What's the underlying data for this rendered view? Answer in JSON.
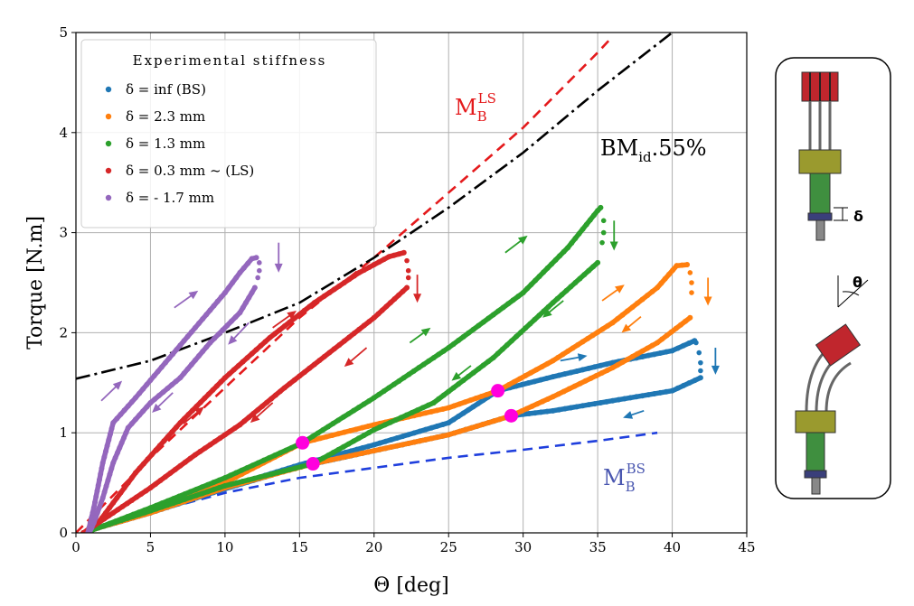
{
  "chart_data": {
    "type": "scatter",
    "title": "",
    "xlabel": "Θ [deg]",
    "ylabel": "Torque [N.m]",
    "xlim": [
      0,
      45
    ],
    "ylim": [
      0,
      5
    ],
    "xticks": [
      "0",
      "5",
      "10",
      "15",
      "20",
      "25",
      "30",
      "35",
      "40",
      "45"
    ],
    "yticks": [
      "0",
      "1",
      "2",
      "3",
      "4",
      "5"
    ],
    "grid": true,
    "legend": {
      "title": "Experimental stiffness",
      "position": "top-left",
      "entries": [
        {
          "label": "δ = inf (BS)",
          "color": "#1f77b4"
        },
        {
          "label": "δ = 2.3 mm",
          "color": "#ff7f0e"
        },
        {
          "label": "δ = 1.3 mm",
          "color": "#2ca02c"
        },
        {
          "label": "δ = 0.3 mm ~ (LS)",
          "color": "#d62728"
        },
        {
          "label": "δ = - 1.7 mm",
          "color": "#9467bd"
        }
      ]
    },
    "series": [
      {
        "name": "δ = inf (BS)",
        "color": "#1f77b4",
        "loading": [
          [
            0.5,
            0.0
          ],
          [
            1.5,
            0.05
          ],
          [
            5,
            0.2
          ],
          [
            10,
            0.45
          ],
          [
            15,
            0.68
          ],
          [
            20,
            0.88
          ],
          [
            25,
            1.1
          ],
          [
            28.3,
            1.42
          ],
          [
            32,
            1.56
          ],
          [
            36,
            1.7
          ],
          [
            40,
            1.82
          ],
          [
            41.5,
            1.92
          ]
        ],
        "drop": [
          [
            41.6,
            1.9
          ],
          [
            41.8,
            1.8
          ],
          [
            41.9,
            1.7
          ],
          [
            41.9,
            1.62
          ]
        ],
        "unloading": [
          [
            41.9,
            1.55
          ],
          [
            40,
            1.42
          ],
          [
            36,
            1.32
          ],
          [
            32,
            1.22
          ],
          [
            29.2,
            1.17
          ],
          [
            25,
            0.98
          ],
          [
            20,
            0.82
          ],
          [
            15,
            0.66
          ],
          [
            10,
            0.44
          ],
          [
            5,
            0.2
          ],
          [
            1.5,
            0.05
          ],
          [
            0.5,
            0.0
          ]
        ]
      },
      {
        "name": "δ = 2.3 mm",
        "color": "#ff7f0e",
        "loading": [
          [
            0.5,
            0.0
          ],
          [
            1.5,
            0.05
          ],
          [
            5,
            0.22
          ],
          [
            10,
            0.5
          ],
          [
            15.2,
            0.9
          ],
          [
            20,
            1.08
          ],
          [
            25,
            1.25
          ],
          [
            28.3,
            1.42
          ],
          [
            32,
            1.72
          ],
          [
            36,
            2.1
          ],
          [
            39,
            2.45
          ],
          [
            40.3,
            2.67
          ],
          [
            41,
            2.68
          ]
        ],
        "drop": [
          [
            41.2,
            2.6
          ],
          [
            41.3,
            2.5
          ],
          [
            41.3,
            2.4
          ]
        ],
        "unloading": [
          [
            41.2,
            2.15
          ],
          [
            39,
            1.9
          ],
          [
            36,
            1.65
          ],
          [
            32,
            1.36
          ],
          [
            29.2,
            1.17
          ],
          [
            25,
            0.98
          ],
          [
            20,
            0.82
          ],
          [
            15.9,
            0.69
          ],
          [
            10,
            0.45
          ],
          [
            5,
            0.2
          ],
          [
            1.5,
            0.05
          ],
          [
            0.5,
            0.0
          ]
        ]
      },
      {
        "name": "δ = 1.3 mm",
        "color": "#2ca02c",
        "loading": [
          [
            0.5,
            0.0
          ],
          [
            1.5,
            0.05
          ],
          [
            5,
            0.25
          ],
          [
            10,
            0.55
          ],
          [
            15.2,
            0.9
          ],
          [
            20,
            1.35
          ],
          [
            25,
            1.85
          ],
          [
            30,
            2.4
          ],
          [
            33,
            2.85
          ],
          [
            35,
            3.22
          ],
          [
            35.2,
            3.25
          ]
        ],
        "drop": [
          [
            35.4,
            3.12
          ],
          [
            35.4,
            3.0
          ],
          [
            35.3,
            2.9
          ]
        ],
        "unloading": [
          [
            35.0,
            2.7
          ],
          [
            32,
            2.3
          ],
          [
            28,
            1.75
          ],
          [
            24,
            1.3
          ],
          [
            20,
            1.03
          ],
          [
            15.9,
            0.69
          ],
          [
            10,
            0.47
          ],
          [
            5,
            0.22
          ],
          [
            1.5,
            0.05
          ],
          [
            0.5,
            0.0
          ]
        ]
      },
      {
        "name": "δ = 0.3 mm ~ (LS)",
        "color": "#d62728",
        "loading": [
          [
            0.5,
            0.0
          ],
          [
            1.5,
            0.1
          ],
          [
            4,
            0.6
          ],
          [
            7,
            1.1
          ],
          [
            10,
            1.55
          ],
          [
            13,
            1.95
          ],
          [
            16,
            2.3
          ],
          [
            19,
            2.6
          ],
          [
            21,
            2.76
          ],
          [
            22,
            2.8
          ]
        ],
        "drop": [
          [
            22.2,
            2.72
          ],
          [
            22.3,
            2.62
          ],
          [
            22.3,
            2.55
          ]
        ],
        "unloading": [
          [
            22.2,
            2.45
          ],
          [
            20,
            2.15
          ],
          [
            17,
            1.8
          ],
          [
            14,
            1.45
          ],
          [
            11,
            1.08
          ],
          [
            8,
            0.78
          ],
          [
            5,
            0.45
          ],
          [
            2.5,
            0.2
          ],
          [
            1,
            0.05
          ],
          [
            0.5,
            0.0
          ]
        ]
      },
      {
        "name": "δ = - 1.7 mm",
        "color": "#9467bd",
        "loading": [
          [
            0.8,
            0.0
          ],
          [
            1.2,
            0.25
          ],
          [
            1.8,
            0.7
          ],
          [
            2.5,
            1.1
          ],
          [
            4,
            1.35
          ],
          [
            6,
            1.7
          ],
          [
            8,
            2.05
          ],
          [
            10,
            2.4
          ],
          [
            11,
            2.6
          ],
          [
            11.8,
            2.74
          ],
          [
            12.1,
            2.75
          ]
        ],
        "drop": [
          [
            12.3,
            2.7
          ],
          [
            12.3,
            2.62
          ],
          [
            12.2,
            2.55
          ]
        ],
        "unloading": [
          [
            12.0,
            2.45
          ],
          [
            11,
            2.2
          ],
          [
            9,
            1.9
          ],
          [
            7,
            1.55
          ],
          [
            5,
            1.3
          ],
          [
            3.5,
            1.05
          ],
          [
            2.5,
            0.7
          ],
          [
            1.8,
            0.35
          ],
          [
            1.2,
            0.1
          ],
          [
            0.9,
            0.0
          ]
        ]
      }
    ],
    "reference_curves": [
      {
        "name": "M_B^LS",
        "label_main": "M",
        "label_sub": "B",
        "label_sup": "LS",
        "color": "#e41a1c",
        "style": "dashed",
        "points": [
          [
            0,
            0
          ],
          [
            5,
            0.75
          ],
          [
            10,
            1.45
          ],
          [
            15,
            2.15
          ],
          [
            20,
            2.75
          ],
          [
            25,
            3.4
          ],
          [
            30,
            4.05
          ],
          [
            35,
            4.8
          ],
          [
            36,
            4.96
          ]
        ]
      },
      {
        "name": "BM_id.55%",
        "label_main": "BM",
        "label_sub": "id",
        "label_rest": ".55%",
        "color": "#000000",
        "style": "dashdot",
        "points": [
          [
            0,
            1.54
          ],
          [
            5,
            1.72
          ],
          [
            10,
            2.0
          ],
          [
            15,
            2.3
          ],
          [
            20,
            2.75
          ],
          [
            25,
            3.25
          ],
          [
            30,
            3.8
          ],
          [
            35,
            4.42
          ],
          [
            40,
            5.0
          ]
        ]
      },
      {
        "name": "M_B^BS",
        "label_main": "M",
        "label_sub": "B",
        "label_sup": "BS",
        "color": "#1f3fdd",
        "style": "dashed",
        "points": [
          [
            1,
            0.06
          ],
          [
            5,
            0.2
          ],
          [
            10,
            0.4
          ],
          [
            15,
            0.55
          ],
          [
            20,
            0.65
          ],
          [
            25,
            0.75
          ],
          [
            30,
            0.83
          ],
          [
            35,
            0.92
          ],
          [
            39,
            1.0
          ]
        ]
      }
    ],
    "transition_points": [
      [
        15.2,
        0.9
      ],
      [
        15.9,
        0.69
      ],
      [
        28.3,
        1.42
      ],
      [
        29.2,
        1.17
      ]
    ],
    "transition_color": "#ff00dd",
    "direction_arrows": [
      {
        "series": "δ = - 1.7 mm",
        "from": [
          6.6,
          2.25
        ],
        "to": [
          8.2,
          2.42
        ]
      },
      {
        "series": "δ = - 1.7 mm",
        "from": [
          11.6,
          2.1
        ],
        "to": [
          10.2,
          1.88
        ]
      },
      {
        "series": "δ = - 1.7 mm",
        "from": [
          1.7,
          1.32
        ],
        "to": [
          3.1,
          1.52
        ]
      },
      {
        "series": "δ = - 1.7 mm",
        "from": [
          6.5,
          1.4
        ],
        "to": [
          5.1,
          1.2
        ]
      },
      {
        "series": "δ = - 1.7 mm",
        "from": [
          13.6,
          2.9
        ],
        "to": [
          13.6,
          2.6
        ]
      },
      {
        "series": "δ = 0.3 mm ~ (LS)",
        "from": [
          13.2,
          2.05
        ],
        "to": [
          14.8,
          2.22
        ]
      },
      {
        "series": "δ = 0.3 mm ~ (LS)",
        "from": [
          19.5,
          1.85
        ],
        "to": [
          18.0,
          1.66
        ]
      },
      {
        "series": "δ = 0.3 mm ~ (LS)",
        "from": [
          7.2,
          1.09
        ],
        "to": [
          8.6,
          1.26
        ]
      },
      {
        "series": "δ = 0.3 mm ~ (LS)",
        "from": [
          13.2,
          1.3
        ],
        "to": [
          11.7,
          1.1
        ]
      },
      {
        "series": "δ = 0.3 mm ~ (LS)",
        "from": [
          22.9,
          2.58
        ],
        "to": [
          22.9,
          2.3
        ]
      },
      {
        "series": "δ = 1.3 mm",
        "from": [
          22.4,
          1.9
        ],
        "to": [
          23.8,
          2.05
        ]
      },
      {
        "series": "δ = 1.3 mm",
        "from": [
          28.8,
          2.8
        ],
        "to": [
          30.3,
          2.97
        ]
      },
      {
        "series": "δ = 1.3 mm",
        "from": [
          26.5,
          1.67
        ],
        "to": [
          25.2,
          1.52
        ]
      },
      {
        "series": "δ = 1.3 mm",
        "from": [
          32.7,
          2.32
        ],
        "to": [
          31.3,
          2.15
        ]
      },
      {
        "series": "δ = 1.3 mm",
        "from": [
          36.1,
          3.12
        ],
        "to": [
          36.1,
          2.82
        ]
      },
      {
        "series": "δ = 2.3 mm",
        "from": [
          35.3,
          2.32
        ],
        "to": [
          36.8,
          2.48
        ]
      },
      {
        "series": "δ = 2.3 mm",
        "from": [
          37.9,
          2.16
        ],
        "to": [
          36.6,
          2.0
        ]
      },
      {
        "series": "δ = 2.3 mm",
        "from": [
          42.4,
          2.55
        ],
        "to": [
          42.4,
          2.27
        ]
      },
      {
        "series": "δ = inf (BS)",
        "from": [
          32.5,
          1.72
        ],
        "to": [
          34.3,
          1.77
        ]
      },
      {
        "series": "δ = inf (BS)",
        "from": [
          38.1,
          1.22
        ],
        "to": [
          36.7,
          1.15
        ]
      },
      {
        "series": "δ = inf (BS)",
        "from": [
          42.9,
          1.85
        ],
        "to": [
          42.9,
          1.58
        ]
      }
    ]
  },
  "side_panel": {
    "delta_label": "δ",
    "theta_label": "θ"
  }
}
